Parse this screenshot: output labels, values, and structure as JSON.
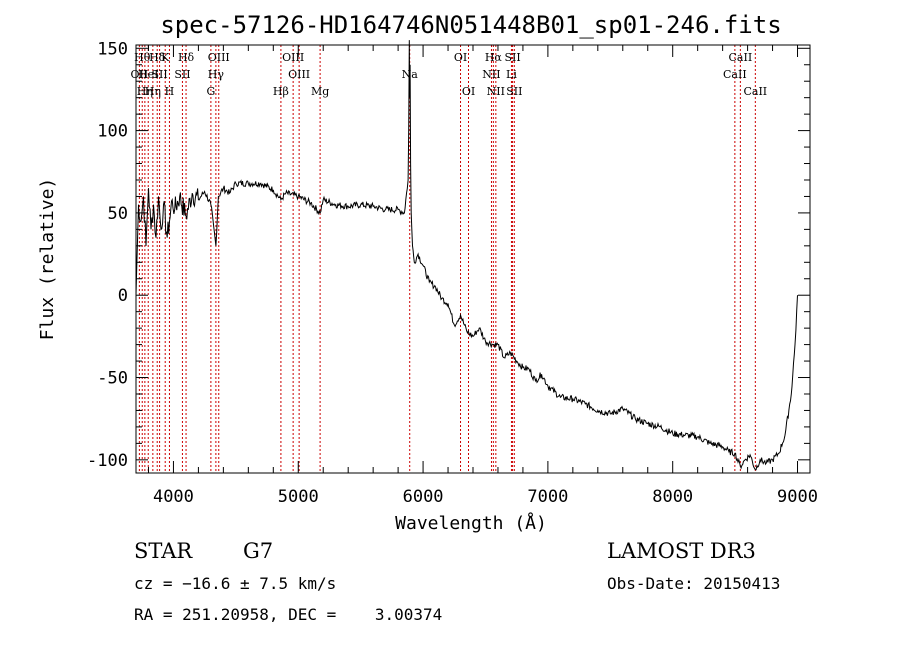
{
  "chart_data": {
    "type": "line",
    "title": "spec-57126-HD164746N051448B01_sp01-246.fits",
    "xlabel": "Wavelength (Å)",
    "ylabel": "Flux (relative)",
    "xlim": [
      3700,
      9100
    ],
    "ylim": [
      -108,
      152
    ],
    "xticks": [
      4000,
      5000,
      6000,
      7000,
      8000,
      9000
    ],
    "yticks": [
      -100,
      -50,
      0,
      50,
      100,
      150
    ],
    "series": [
      {
        "name": "spectrum",
        "x": [
          3700,
          3720,
          3740,
          3760,
          3780,
          3800,
          3820,
          3840,
          3860,
          3880,
          3900,
          3920,
          3950,
          3968,
          3990,
          4010,
          4050,
          4101,
          4150,
          4200,
          4250,
          4300,
          4340,
          4360,
          4400,
          4450,
          4500,
          4600,
          4700,
          4800,
          4861,
          4900,
          5000,
          5100,
          5175,
          5200,
          5300,
          5400,
          5500,
          5600,
          5700,
          5800,
          5850,
          5880,
          5885,
          5890,
          5893,
          5896,
          5900,
          5905,
          5915,
          5930,
          5960,
          6000,
          6050,
          6100,
          6150,
          6200,
          6250,
          6300,
          6350,
          6400,
          6450,
          6500,
          6563,
          6600,
          6650,
          6700,
          6750,
          6800,
          6850,
          6900,
          6950,
          7000,
          7100,
          7200,
          7300,
          7400,
          7500,
          7600,
          7700,
          7800,
          7900,
          8000,
          8100,
          8200,
          8300,
          8400,
          8450,
          8498,
          8542,
          8580,
          8620,
          8662,
          8700,
          8750,
          8800,
          8850,
          8900,
          8950,
          8980,
          9000
        ],
        "values": [
          0,
          55,
          45,
          60,
          30,
          65,
          40,
          55,
          35,
          60,
          40,
          55,
          35,
          45,
          58,
          52,
          60,
          48,
          62,
          58,
          63,
          55,
          30,
          60,
          65,
          62,
          68,
          68,
          68,
          64,
          58,
          62,
          60,
          56,
          50,
          58,
          55,
          54,
          55,
          54,
          52,
          52,
          50,
          70,
          100,
          155,
          120,
          140,
          80,
          50,
          30,
          20,
          25,
          18,
          8,
          5,
          -2,
          -5,
          -18,
          -12,
          -22,
          -25,
          -20,
          -28,
          -30,
          -30,
          -38,
          -35,
          -40,
          -44,
          -45,
          -52,
          -48,
          -55,
          -62,
          -63,
          -66,
          -70,
          -72,
          -69,
          -75,
          -78,
          -80,
          -84,
          -85,
          -86,
          -90,
          -92,
          -95,
          -96,
          -104,
          -100,
          -97,
          -106,
          -100,
          -102,
          -100,
          -96,
          -85,
          -60,
          -30,
          0
        ]
      }
    ],
    "line_markers": [
      {
        "wavelength": 3727,
        "label": "OII",
        "row": 2
      },
      {
        "wavelength": 3750,
        "label": "Hθ",
        "row": 1
      },
      {
        "wavelength": 3771,
        "label": "Hη",
        "row": 3
      },
      {
        "wavelength": 3798,
        "label": "HeI",
        "row": 2
      },
      {
        "wavelength": 3835,
        "label": "Hη",
        "row": 3
      },
      {
        "wavelength": 3870,
        "label": "Hδ",
        "row": 1
      },
      {
        "wavelength": 3889,
        "label": "SII",
        "row": 2
      },
      {
        "wavelength": 3934,
        "label": "K",
        "row": 1
      },
      {
        "wavelength": 3968,
        "label": "H",
        "row": 3
      },
      {
        "wavelength": 4072,
        "label": "SII",
        "row": 2
      },
      {
        "wavelength": 4101,
        "label": "Hδ",
        "row": 1
      },
      {
        "wavelength": 4300,
        "label": "G",
        "row": 3
      },
      {
        "wavelength": 4340,
        "label": "Hγ",
        "row": 2
      },
      {
        "wavelength": 4363,
        "label": "OIII",
        "row": 1
      },
      {
        "wavelength": 4861,
        "label": "Hβ",
        "row": 3
      },
      {
        "wavelength": 4959,
        "label": "OIII",
        "row": 1
      },
      {
        "wavelength": 5007,
        "label": "OIII",
        "row": 2
      },
      {
        "wavelength": 5175,
        "label": "Mg",
        "row": 3
      },
      {
        "wavelength": 5893,
        "label": "Na",
        "row": 2
      },
      {
        "wavelength": 6300,
        "label": "OI",
        "row": 1
      },
      {
        "wavelength": 6364,
        "label": "OI",
        "row": 3
      },
      {
        "wavelength": 6548,
        "label": "NII",
        "row": 2
      },
      {
        "wavelength": 6563,
        "label": "Hα",
        "row": 1
      },
      {
        "wavelength": 6583,
        "label": "NII",
        "row": 3
      },
      {
        "wavelength": 6708,
        "label": "Li",
        "row": 2
      },
      {
        "wavelength": 6717,
        "label": "SII",
        "row": 1
      },
      {
        "wavelength": 6731,
        "label": "SII",
        "row": 3
      },
      {
        "wavelength": 8498,
        "label": "CaII",
        "row": 2
      },
      {
        "wavelength": 8542,
        "label": "CaII",
        "row": 1
      },
      {
        "wavelength": 8662,
        "label": "CaII",
        "row": 3
      }
    ]
  },
  "info": {
    "class": "STAR",
    "subclass": "G7",
    "survey": "LAMOST DR3",
    "cz": "cz = −16.6 ± 7.5 km/s",
    "obs_date": "Obs-Date: 20150413",
    "radec": "RA = 251.20958, DEC =    3.00374"
  },
  "colors": {
    "marker": "#cc0000",
    "axis": "#000000",
    "spectrum": "#000000"
  }
}
